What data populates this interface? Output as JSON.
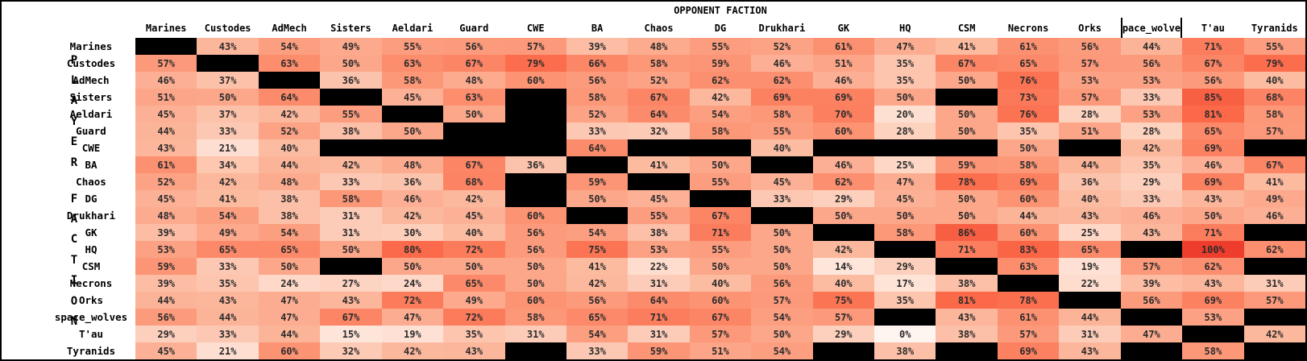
{
  "chart_data": {
    "type": "heatmap",
    "title": "OPPONENT FACTION",
    "ylabel": "PLAYER FACTION",
    "cell_suffix": "%",
    "clipped_header": "space_wolves",
    "columns": [
      "Marines",
      "Custodes",
      "AdMech",
      "Sisters",
      "Aeldari",
      "Guard",
      "CWE",
      "BA",
      "Chaos",
      "DG",
      "Drukhari",
      "GK",
      "HQ",
      "CSM",
      "Necrons",
      "Orks",
      "space_wolves",
      "T'au",
      "Tyranids"
    ],
    "rows": [
      "Marines",
      "Custodes",
      "AdMech",
      "Sisters",
      "Aeldari",
      "Guard",
      "CWE",
      "BA",
      "Chaos",
      "DG",
      "Drukhari",
      "GK",
      "HQ",
      "CSM",
      "Necrons",
      "Orks",
      "space_wolves",
      "T'au",
      "Tyranids"
    ],
    "values": [
      [
        null,
        43,
        54,
        49,
        55,
        56,
        57,
        39,
        48,
        55,
        52,
        61,
        47,
        41,
        61,
        56,
        44,
        71,
        55
      ],
      [
        57,
        null,
        63,
        50,
        63,
        67,
        79,
        66,
        58,
        59,
        46,
        51,
        35,
        67,
        65,
        57,
        56,
        67,
        79
      ],
      [
        46,
        37,
        null,
        36,
        58,
        48,
        60,
        56,
        52,
        62,
        62,
        46,
        35,
        50,
        76,
        53,
        53,
        56,
        40
      ],
      [
        51,
        50,
        64,
        null,
        45,
        63,
        null,
        58,
        67,
        42,
        69,
        69,
        50,
        null,
        73,
        57,
        33,
        85,
        68
      ],
      [
        45,
        37,
        42,
        55,
        null,
        50,
        null,
        52,
        64,
        54,
        58,
        70,
        20,
        50,
        76,
        28,
        53,
        81,
        58
      ],
      [
        44,
        33,
        52,
        38,
        50,
        null,
        null,
        33,
        32,
        58,
        55,
        60,
        28,
        50,
        35,
        51,
        28,
        65,
        57
      ],
      [
        43,
        21,
        40,
        null,
        null,
        null,
        null,
        64,
        null,
        null,
        40,
        null,
        null,
        null,
        50,
        null,
        42,
        69,
        null
      ],
      [
        61,
        34,
        44,
        42,
        48,
        67,
        36,
        null,
        41,
        50,
        null,
        46,
        25,
        59,
        58,
        44,
        35,
        46,
        67
      ],
      [
        52,
        42,
        48,
        33,
        36,
        68,
        null,
        59,
        null,
        55,
        45,
        62,
        47,
        78,
        69,
        36,
        29,
        69,
        41
      ],
      [
        45,
        41,
        38,
        58,
        46,
        42,
        null,
        50,
        45,
        null,
        33,
        29,
        45,
        50,
        60,
        40,
        33,
        43,
        49
      ],
      [
        48,
        54,
        38,
        31,
        42,
        45,
        60,
        null,
        55,
        67,
        null,
        50,
        50,
        50,
        44,
        43,
        46,
        50,
        46
      ],
      [
        39,
        49,
        54,
        31,
        30,
        40,
        56,
        54,
        38,
        71,
        50,
        null,
        58,
        86,
        60,
        25,
        43,
        71,
        null
      ],
      [
        53,
        65,
        65,
        50,
        80,
        72,
        56,
        75,
        53,
        55,
        50,
        42,
        null,
        71,
        83,
        65,
        null,
        100,
        62
      ],
      [
        59,
        33,
        50,
        null,
        50,
        50,
        50,
        41,
        22,
        50,
        50,
        14,
        29,
        null,
        63,
        19,
        57,
        62,
        null
      ],
      [
        39,
        35,
        24,
        27,
        24,
        65,
        50,
        42,
        31,
        40,
        56,
        40,
        17,
        38,
        null,
        22,
        39,
        43,
        31
      ],
      [
        44,
        43,
        47,
        43,
        72,
        49,
        60,
        56,
        64,
        60,
        57,
        75,
        35,
        81,
        78,
        null,
        56,
        69,
        57
      ],
      [
        56,
        44,
        47,
        67,
        47,
        72,
        58,
        65,
        71,
        67,
        54,
        57,
        null,
        43,
        61,
        44,
        null,
        53,
        null
      ],
      [
        29,
        33,
        44,
        15,
        19,
        35,
        31,
        54,
        31,
        57,
        50,
        29,
        0,
        38,
        57,
        31,
        47,
        null,
        42
      ],
      [
        45,
        21,
        60,
        32,
        42,
        43,
        null,
        33,
        59,
        51,
        54,
        null,
        38,
        null,
        69,
        43,
        null,
        58,
        null
      ]
    ],
    "value_range": [
      0,
      100
    ],
    "colormap": {
      "missing_color": "#000000",
      "text_color": "#2b2b2b",
      "value_scale": 0.0062,
      "stops": [
        {
          "t": 0.0,
          "color": "#fff5f0"
        },
        {
          "t": 0.125,
          "color": "#fee0d2"
        },
        {
          "t": 0.25,
          "color": "#fcbba1"
        },
        {
          "t": 0.375,
          "color": "#fc9272"
        },
        {
          "t": 0.5,
          "color": "#fb6a4a"
        },
        {
          "t": 0.625,
          "color": "#ef3b2c"
        },
        {
          "t": 0.75,
          "color": "#cb181d"
        }
      ]
    }
  }
}
